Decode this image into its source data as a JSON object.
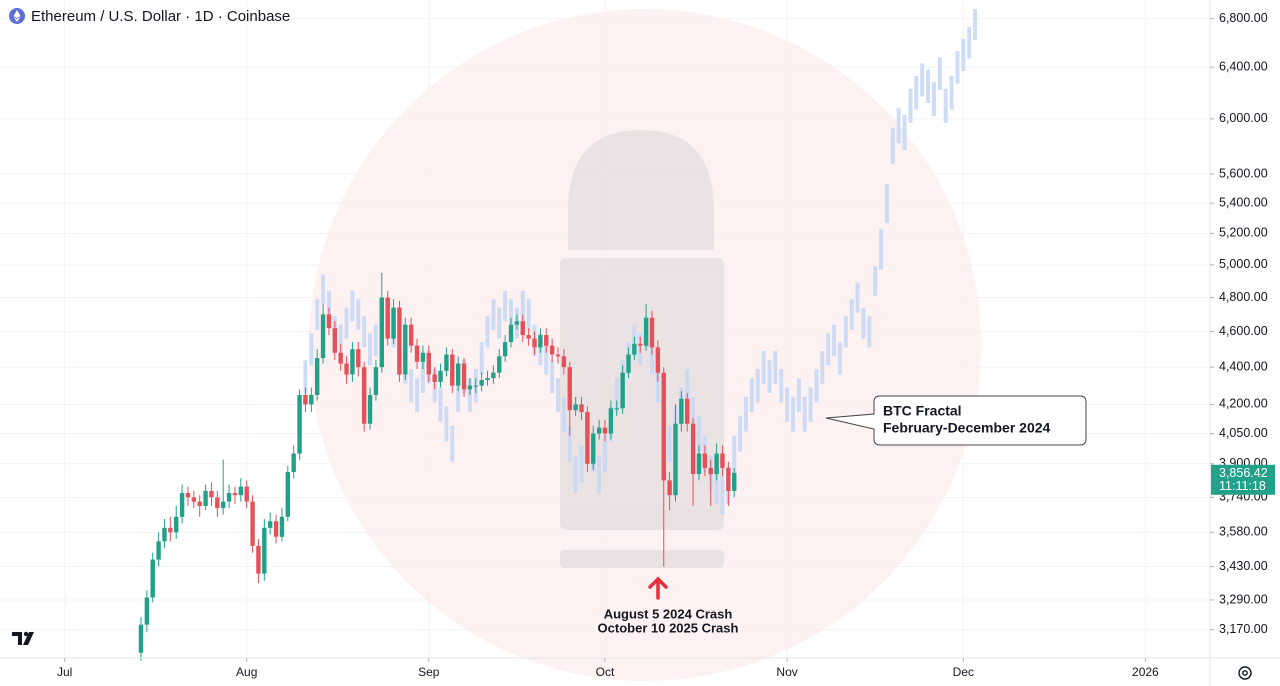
{
  "chart_data": {
    "type": "candlestick",
    "title": "Ethereum / U.S. Dollar · 1D · Coinbase",
    "log_scale": true,
    "grid": true,
    "xlim": [
      -11,
      195
    ],
    "xticks": [
      {
        "value": 0,
        "label": "Jul"
      },
      {
        "value": 31,
        "label": "Aug"
      },
      {
        "value": 62,
        "label": "Sep"
      },
      {
        "value": 92,
        "label": "Oct"
      },
      {
        "value": 123,
        "label": "Nov"
      },
      {
        "value": 153,
        "label": "Dec"
      },
      {
        "value": 184,
        "label": "2026"
      }
    ],
    "ylim": [
      3060,
      6960
    ],
    "yticks": [
      {
        "value": 3170,
        "label": "3,170.00"
      },
      {
        "value": 3290,
        "label": "3,290.00"
      },
      {
        "value": 3430,
        "label": "3,430.00"
      },
      {
        "value": 3580,
        "label": "3,580.00"
      },
      {
        "value": 3740,
        "label": "3,740.00"
      },
      {
        "value": 3900,
        "label": "3,900.00"
      },
      {
        "value": 4050,
        "label": "4,050.00"
      },
      {
        "value": 4200,
        "label": "4,200.00"
      },
      {
        "value": 4400,
        "label": "4,400.00"
      },
      {
        "value": 4600,
        "label": "4,600.00"
      },
      {
        "value": 4800,
        "label": "4,800.00"
      },
      {
        "value": 5000,
        "label": "5,000.00"
      },
      {
        "value": 5200,
        "label": "5,200.00"
      },
      {
        "value": 5400,
        "label": "5,400.00"
      },
      {
        "value": 5600,
        "label": "5,600.00"
      },
      {
        "value": 6000,
        "label": "6,000.00"
      },
      {
        "value": 6400,
        "label": "6,400.00"
      },
      {
        "value": 6800,
        "label": "6,800.00"
      }
    ],
    "series": [
      {
        "type": "candlestick",
        "up_color": "#22a18a",
        "down_color": "#e4515a",
        "x": [
          13,
          14,
          15,
          16,
          17,
          18,
          19,
          20,
          21,
          22,
          23,
          24,
          25,
          26,
          27,
          28,
          29,
          30,
          31,
          32,
          33,
          34,
          35,
          36,
          37,
          38,
          39,
          40,
          41,
          42,
          43,
          44,
          45,
          46,
          47,
          48,
          49,
          50,
          51,
          52,
          53,
          54,
          55,
          56,
          57,
          58,
          59,
          60,
          61,
          62,
          63,
          64,
          65,
          66,
          67,
          68,
          69,
          70,
          71,
          72,
          73,
          74,
          75,
          76,
          77,
          78,
          79,
          80,
          81,
          82,
          83,
          84,
          85,
          86,
          87,
          88,
          89,
          90,
          91,
          92,
          93,
          94,
          95,
          96,
          97,
          98,
          99,
          100,
          101,
          102,
          103,
          104,
          105,
          106,
          107,
          108,
          109,
          110,
          111,
          112,
          113,
          114
        ],
        "open": [
          3080,
          3190,
          3300,
          3460,
          3540,
          3600,
          3580,
          3650,
          3760,
          3740,
          3720,
          3700,
          3770,
          3740,
          3690,
          3720,
          3760,
          3750,
          3790,
          3720,
          3520,
          3400,
          3600,
          3630,
          3560,
          3650,
          3860,
          3950,
          4250,
          4200,
          4250,
          4450,
          4700,
          4620,
          4480,
          4420,
          4360,
          4500,
          4400,
          4100,
          4250,
          4400,
          4800,
          4560,
          4740,
          4360,
          4640,
          4520,
          4430,
          4480,
          4360,
          4320,
          4380,
          4470,
          4300,
          4420,
          4280,
          4300,
          4300,
          4330,
          4340,
          4370,
          4460,
          4540,
          4640,
          4660,
          4580,
          4560,
          4510,
          4580,
          4520,
          4470,
          4460,
          4400,
          4170,
          4200,
          4160,
          3900,
          4050,
          4080,
          4050,
          4180,
          4180,
          4370,
          4470,
          4530,
          4520,
          4680,
          4510,
          4370,
          3820,
          3750,
          4100,
          4230,
          4100,
          3850,
          3950,
          3880,
          3850,
          3950,
          3880,
          3770
        ],
        "high": [
          3220,
          3330,
          3490,
          3580,
          3640,
          3650,
          3700,
          3800,
          3790,
          3770,
          3750,
          3800,
          3810,
          3770,
          3920,
          3800,
          3790,
          3830,
          3820,
          3750,
          3550,
          3640,
          3670,
          3660,
          3690,
          3890,
          3990,
          4280,
          4290,
          4290,
          4500,
          4760,
          4740,
          4660,
          4530,
          4460,
          4540,
          4540,
          4430,
          4290,
          4440,
          4950,
          4840,
          4790,
          4780,
          4680,
          4680,
          4560,
          4520,
          4520,
          4400,
          4420,
          4510,
          4500,
          4460,
          4450,
          4340,
          4340,
          4370,
          4380,
          4410,
          4500,
          4580,
          4680,
          4700,
          4700,
          4620,
          4600,
          4620,
          4620,
          4560,
          4510,
          4500,
          4430,
          4240,
          4240,
          4190,
          4090,
          4120,
          4120,
          4220,
          4220,
          4410,
          4510,
          4570,
          4570,
          4760,
          4720,
          4550,
          4400,
          3860,
          4200,
          4270,
          4260,
          4130,
          3990,
          3990,
          3920,
          4000,
          3990,
          3910,
          3880
        ],
        "low": [
          3050,
          3160,
          3280,
          3430,
          3510,
          3540,
          3550,
          3620,
          3700,
          3690,
          3650,
          3680,
          3700,
          3650,
          3660,
          3690,
          3710,
          3720,
          3690,
          3490,
          3360,
          3370,
          3570,
          3530,
          3540,
          3630,
          3830,
          3920,
          4160,
          4160,
          4220,
          4420,
          4580,
          4440,
          4380,
          4310,
          4320,
          4350,
          4060,
          4070,
          4220,
          4370,
          4520,
          4530,
          4320,
          4330,
          4480,
          4390,
          4390,
          4320,
          4280,
          4290,
          4350,
          4260,
          4270,
          4240,
          4250,
          4260,
          4270,
          4300,
          4310,
          4340,
          4430,
          4510,
          4610,
          4540,
          4520,
          4470,
          4480,
          4480,
          4430,
          4420,
          4360,
          4040,
          4140,
          4120,
          3860,
          3870,
          4020,
          4010,
          4020,
          4140,
          4150,
          4340,
          4440,
          4480,
          4490,
          4470,
          4320,
          3430,
          3680,
          3720,
          4060,
          4060,
          3700,
          3820,
          3840,
          3700,
          3820,
          3840,
          3700,
          3740
        ],
        "close": [
          3190,
          3300,
          3460,
          3540,
          3600,
          3580,
          3650,
          3760,
          3740,
          3720,
          3700,
          3770,
          3740,
          3690,
          3720,
          3760,
          3750,
          3790,
          3720,
          3520,
          3400,
          3600,
          3630,
          3560,
          3650,
          3860,
          3950,
          4250,
          4200,
          4250,
          4450,
          4700,
          4620,
          4480,
          4420,
          4360,
          4500,
          4400,
          4100,
          4250,
          4400,
          4800,
          4560,
          4740,
          4360,
          4640,
          4520,
          4430,
          4480,
          4360,
          4320,
          4380,
          4470,
          4300,
          4420,
          4280,
          4300,
          4300,
          4330,
          4340,
          4370,
          4460,
          4540,
          4640,
          4660,
          4580,
          4560,
          4510,
          4580,
          4520,
          4470,
          4460,
          4400,
          4170,
          4200,
          4160,
          3900,
          4050,
          4080,
          4050,
          4180,
          4180,
          4370,
          4470,
          4530,
          4520,
          4680,
          4510,
          4370,
          3820,
          3750,
          4100,
          4230,
          4100,
          3850,
          3950,
          3880,
          3850,
          3950,
          3880,
          3770,
          3856.42
        ]
      },
      {
        "type": "range",
        "color": "#c6d7f5",
        "x": [
          40,
          41,
          42,
          43,
          44,
          45,
          46,
          47,
          48,
          49,
          50,
          51,
          52,
          53,
          54,
          55,
          56,
          57,
          58,
          59,
          60,
          61,
          62,
          63,
          64,
          65,
          66,
          67,
          68,
          69,
          70,
          71,
          72,
          73,
          74,
          75,
          76,
          77,
          78,
          79,
          80,
          81,
          82,
          83,
          84,
          85,
          86,
          87,
          88,
          89,
          90,
          91,
          92,
          93,
          94,
          95,
          96,
          97,
          98,
          99,
          100,
          101,
          102,
          103,
          104,
          105,
          106,
          107,
          108,
          109,
          110,
          111,
          112,
          113,
          114,
          115,
          116,
          117,
          118,
          119,
          120,
          121,
          122,
          123,
          124,
          125,
          126,
          127,
          128,
          129,
          130,
          131,
          132,
          133,
          134,
          135,
          136,
          137,
          138,
          139,
          140,
          141,
          142,
          143,
          144,
          145,
          146,
          147,
          148,
          149,
          150,
          151,
          152,
          153,
          154,
          155
        ],
        "low": [
          4060,
          4260,
          4410,
          4610,
          4760,
          4660,
          4510,
          4460,
          4560,
          4660,
          4610,
          4510,
          4410,
          4460,
          4560,
          4610,
          4510,
          4360,
          4310,
          4210,
          4160,
          4260,
          4310,
          4210,
          4110,
          4010,
          3910,
          4160,
          4260,
          4160,
          4210,
          4360,
          4510,
          4610,
          4560,
          4660,
          4610,
          4560,
          4660,
          4610,
          4460,
          4410,
          4360,
          4260,
          4160,
          4060,
          3910,
          3760,
          3810,
          3910,
          3860,
          3760,
          3860,
          4010,
          4160,
          4260,
          4360,
          4460,
          4410,
          4510,
          4360,
          4210,
          4060,
          3910,
          4010,
          4110,
          4210,
          4060,
          3960,
          3860,
          3760,
          3710,
          3660,
          3710,
          3860,
          3960,
          4060,
          4160,
          4210,
          4310,
          4260,
          4310,
          4210,
          4110,
          4060,
          4160,
          4060,
          4110,
          4210,
          4310,
          4410,
          4460,
          4360,
          4510,
          4610,
          4710,
          4560,
          4510,
          4810,
          4970,
          5270,
          5670,
          5820,
          5770,
          5970,
          6070,
          6170,
          6120,
          6020,
          6220,
          5970,
          6070,
          6270,
          6370,
          6470,
          6620
        ],
        "high": [
          4240,
          4440,
          4590,
          4790,
          4940,
          4840,
          4690,
          4640,
          4740,
          4840,
          4790,
          4690,
          4590,
          4640,
          4740,
          4790,
          4690,
          4540,
          4490,
          4390,
          4340,
          4440,
          4490,
          4390,
          4290,
          4190,
          4090,
          4340,
          4440,
          4340,
          4390,
          4540,
          4690,
          4790,
          4740,
          4840,
          4790,
          4740,
          4840,
          4790,
          4640,
          4590,
          4540,
          4440,
          4340,
          4240,
          4090,
          3940,
          3990,
          4090,
          4040,
          3940,
          4040,
          4190,
          4340,
          4440,
          4540,
          4640,
          4590,
          4690,
          4540,
          4390,
          4240,
          4090,
          4190,
          4290,
          4390,
          4240,
          4140,
          4040,
          3940,
          3890,
          3840,
          3890,
          4040,
          4140,
          4240,
          4340,
          4390,
          4490,
          4440,
          4490,
          4390,
          4290,
          4240,
          4340,
          4240,
          4290,
          4390,
          4490,
          4590,
          4640,
          4540,
          4690,
          4790,
          4890,
          4740,
          4690,
          4990,
          5230,
          5530,
          5930,
          6080,
          6030,
          6230,
          6330,
          6430,
          6380,
          6280,
          6480,
          6230,
          6330,
          6530,
          6630,
          6730,
          6880
        ]
      }
    ],
    "last_price": {
      "value": 3856.42,
      "label": "3,856.42"
    },
    "countdown": "11:11:18",
    "annotations": [
      {
        "lines": [
          "BTC Fractal",
          "February-December 2024"
        ]
      },
      {
        "lines": [
          "August 5 2024 Crash",
          "October 10 2025 Crash"
        ]
      }
    ]
  }
}
